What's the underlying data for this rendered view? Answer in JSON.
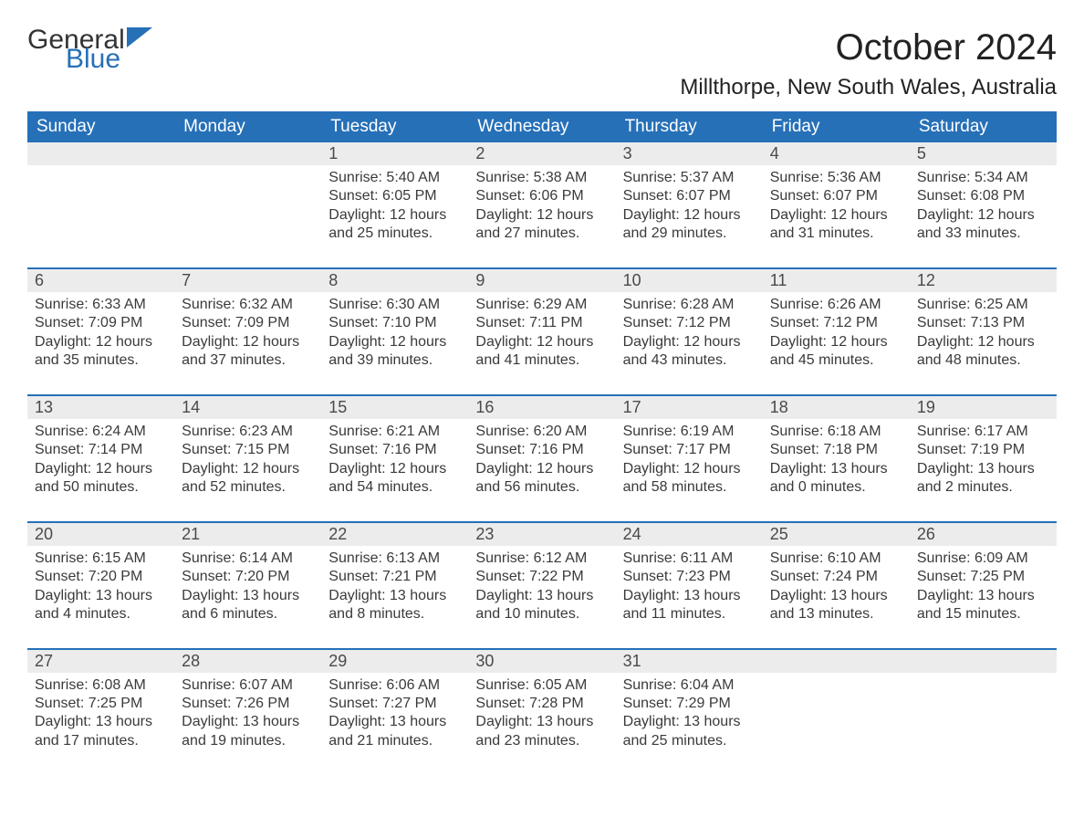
{
  "brand": {
    "word1": "General",
    "word2": "Blue"
  },
  "title": "October 2024",
  "location": "Millthorpe, New South Wales, Australia",
  "style": {
    "header_bg": "#2670b8",
    "header_fg": "#ffffff",
    "daynum_bg": "#ececec",
    "daynum_fg": "#4a4a4a",
    "row_border": "#2670b8",
    "page_bg": "#ffffff",
    "text_color": "#333333",
    "title_fontsize": 40,
    "location_fontsize": 24,
    "header_fontsize": 19,
    "body_fontsize": 16
  },
  "weekdays": [
    "Sunday",
    "Monday",
    "Tuesday",
    "Wednesday",
    "Thursday",
    "Friday",
    "Saturday"
  ],
  "grid": [
    [
      null,
      null,
      {
        "day": "1",
        "sunrise": "Sunrise: 5:40 AM",
        "sunset": "Sunset: 6:05 PM",
        "daylight1": "Daylight: 12 hours",
        "daylight2": "and 25 minutes."
      },
      {
        "day": "2",
        "sunrise": "Sunrise: 5:38 AM",
        "sunset": "Sunset: 6:06 PM",
        "daylight1": "Daylight: 12 hours",
        "daylight2": "and 27 minutes."
      },
      {
        "day": "3",
        "sunrise": "Sunrise: 5:37 AM",
        "sunset": "Sunset: 6:07 PM",
        "daylight1": "Daylight: 12 hours",
        "daylight2": "and 29 minutes."
      },
      {
        "day": "4",
        "sunrise": "Sunrise: 5:36 AM",
        "sunset": "Sunset: 6:07 PM",
        "daylight1": "Daylight: 12 hours",
        "daylight2": "and 31 minutes."
      },
      {
        "day": "5",
        "sunrise": "Sunrise: 5:34 AM",
        "sunset": "Sunset: 6:08 PM",
        "daylight1": "Daylight: 12 hours",
        "daylight2": "and 33 minutes."
      }
    ],
    [
      {
        "day": "6",
        "sunrise": "Sunrise: 6:33 AM",
        "sunset": "Sunset: 7:09 PM",
        "daylight1": "Daylight: 12 hours",
        "daylight2": "and 35 minutes."
      },
      {
        "day": "7",
        "sunrise": "Sunrise: 6:32 AM",
        "sunset": "Sunset: 7:09 PM",
        "daylight1": "Daylight: 12 hours",
        "daylight2": "and 37 minutes."
      },
      {
        "day": "8",
        "sunrise": "Sunrise: 6:30 AM",
        "sunset": "Sunset: 7:10 PM",
        "daylight1": "Daylight: 12 hours",
        "daylight2": "and 39 minutes."
      },
      {
        "day": "9",
        "sunrise": "Sunrise: 6:29 AM",
        "sunset": "Sunset: 7:11 PM",
        "daylight1": "Daylight: 12 hours",
        "daylight2": "and 41 minutes."
      },
      {
        "day": "10",
        "sunrise": "Sunrise: 6:28 AM",
        "sunset": "Sunset: 7:12 PM",
        "daylight1": "Daylight: 12 hours",
        "daylight2": "and 43 minutes."
      },
      {
        "day": "11",
        "sunrise": "Sunrise: 6:26 AM",
        "sunset": "Sunset: 7:12 PM",
        "daylight1": "Daylight: 12 hours",
        "daylight2": "and 45 minutes."
      },
      {
        "day": "12",
        "sunrise": "Sunrise: 6:25 AM",
        "sunset": "Sunset: 7:13 PM",
        "daylight1": "Daylight: 12 hours",
        "daylight2": "and 48 minutes."
      }
    ],
    [
      {
        "day": "13",
        "sunrise": "Sunrise: 6:24 AM",
        "sunset": "Sunset: 7:14 PM",
        "daylight1": "Daylight: 12 hours",
        "daylight2": "and 50 minutes."
      },
      {
        "day": "14",
        "sunrise": "Sunrise: 6:23 AM",
        "sunset": "Sunset: 7:15 PM",
        "daylight1": "Daylight: 12 hours",
        "daylight2": "and 52 minutes."
      },
      {
        "day": "15",
        "sunrise": "Sunrise: 6:21 AM",
        "sunset": "Sunset: 7:16 PM",
        "daylight1": "Daylight: 12 hours",
        "daylight2": "and 54 minutes."
      },
      {
        "day": "16",
        "sunrise": "Sunrise: 6:20 AM",
        "sunset": "Sunset: 7:16 PM",
        "daylight1": "Daylight: 12 hours",
        "daylight2": "and 56 minutes."
      },
      {
        "day": "17",
        "sunrise": "Sunrise: 6:19 AM",
        "sunset": "Sunset: 7:17 PM",
        "daylight1": "Daylight: 12 hours",
        "daylight2": "and 58 minutes."
      },
      {
        "day": "18",
        "sunrise": "Sunrise: 6:18 AM",
        "sunset": "Sunset: 7:18 PM",
        "daylight1": "Daylight: 13 hours",
        "daylight2": "and 0 minutes."
      },
      {
        "day": "19",
        "sunrise": "Sunrise: 6:17 AM",
        "sunset": "Sunset: 7:19 PM",
        "daylight1": "Daylight: 13 hours",
        "daylight2": "and 2 minutes."
      }
    ],
    [
      {
        "day": "20",
        "sunrise": "Sunrise: 6:15 AM",
        "sunset": "Sunset: 7:20 PM",
        "daylight1": "Daylight: 13 hours",
        "daylight2": "and 4 minutes."
      },
      {
        "day": "21",
        "sunrise": "Sunrise: 6:14 AM",
        "sunset": "Sunset: 7:20 PM",
        "daylight1": "Daylight: 13 hours",
        "daylight2": "and 6 minutes."
      },
      {
        "day": "22",
        "sunrise": "Sunrise: 6:13 AM",
        "sunset": "Sunset: 7:21 PM",
        "daylight1": "Daylight: 13 hours",
        "daylight2": "and 8 minutes."
      },
      {
        "day": "23",
        "sunrise": "Sunrise: 6:12 AM",
        "sunset": "Sunset: 7:22 PM",
        "daylight1": "Daylight: 13 hours",
        "daylight2": "and 10 minutes."
      },
      {
        "day": "24",
        "sunrise": "Sunrise: 6:11 AM",
        "sunset": "Sunset: 7:23 PM",
        "daylight1": "Daylight: 13 hours",
        "daylight2": "and 11 minutes."
      },
      {
        "day": "25",
        "sunrise": "Sunrise: 6:10 AM",
        "sunset": "Sunset: 7:24 PM",
        "daylight1": "Daylight: 13 hours",
        "daylight2": "and 13 minutes."
      },
      {
        "day": "26",
        "sunrise": "Sunrise: 6:09 AM",
        "sunset": "Sunset: 7:25 PM",
        "daylight1": "Daylight: 13 hours",
        "daylight2": "and 15 minutes."
      }
    ],
    [
      {
        "day": "27",
        "sunrise": "Sunrise: 6:08 AM",
        "sunset": "Sunset: 7:25 PM",
        "daylight1": "Daylight: 13 hours",
        "daylight2": "and 17 minutes."
      },
      {
        "day": "28",
        "sunrise": "Sunrise: 6:07 AM",
        "sunset": "Sunset: 7:26 PM",
        "daylight1": "Daylight: 13 hours",
        "daylight2": "and 19 minutes."
      },
      {
        "day": "29",
        "sunrise": "Sunrise: 6:06 AM",
        "sunset": "Sunset: 7:27 PM",
        "daylight1": "Daylight: 13 hours",
        "daylight2": "and 21 minutes."
      },
      {
        "day": "30",
        "sunrise": "Sunrise: 6:05 AM",
        "sunset": "Sunset: 7:28 PM",
        "daylight1": "Daylight: 13 hours",
        "daylight2": "and 23 minutes."
      },
      {
        "day": "31",
        "sunrise": "Sunrise: 6:04 AM",
        "sunset": "Sunset: 7:29 PM",
        "daylight1": "Daylight: 13 hours",
        "daylight2": "and 25 minutes."
      },
      null,
      null
    ]
  ]
}
